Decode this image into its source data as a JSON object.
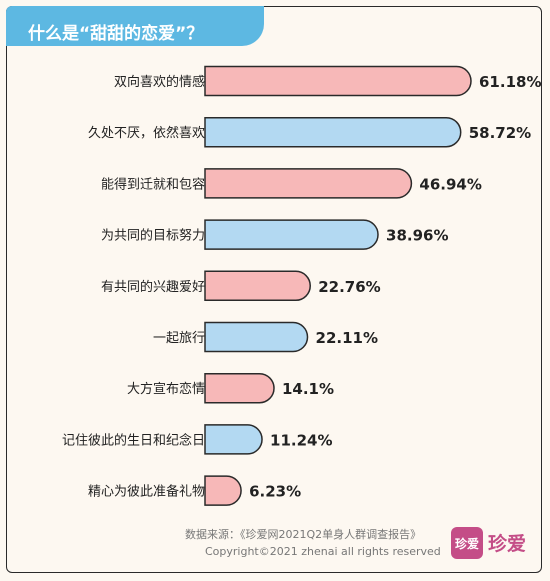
{
  "chart_data": {
    "type": "bar",
    "orientation": "horizontal",
    "title": "什么是“甜甜的恋爱”？",
    "categories": [
      "双向喜欢的情感",
      "久处不厌，依然喜欢",
      "能得到迁就和包容",
      "为共同的目标努力",
      "有共同的兴趣爱好",
      "一起旅行",
      "大方宣布恋情",
      "记住彼此的生日和纪念日",
      "精心为彼此准备礼物"
    ],
    "values": [
      61.18,
      58.72,
      46.94,
      38.96,
      22.76,
      22.11,
      14.1,
      11.24,
      6.23
    ],
    "value_labels": [
      "61.18%",
      "58.72%",
      "46.94%",
      "38.96%",
      "22.76%",
      "22.11%",
      "14.1%",
      "11.24%",
      "6.23%"
    ],
    "colors": [
      "#f7b8b8",
      "#b3d9f2"
    ],
    "xlim": [
      0,
      61.18
    ],
    "grid": false,
    "legend": "none"
  },
  "footer": {
    "source": "数据来源：《珍爱网2021Q2单身人群调查报告》",
    "copyright": "Copyright©2021  zhenai  all rights reserved"
  },
  "logo": {
    "badge": "珍爱",
    "text": "珍爱"
  }
}
